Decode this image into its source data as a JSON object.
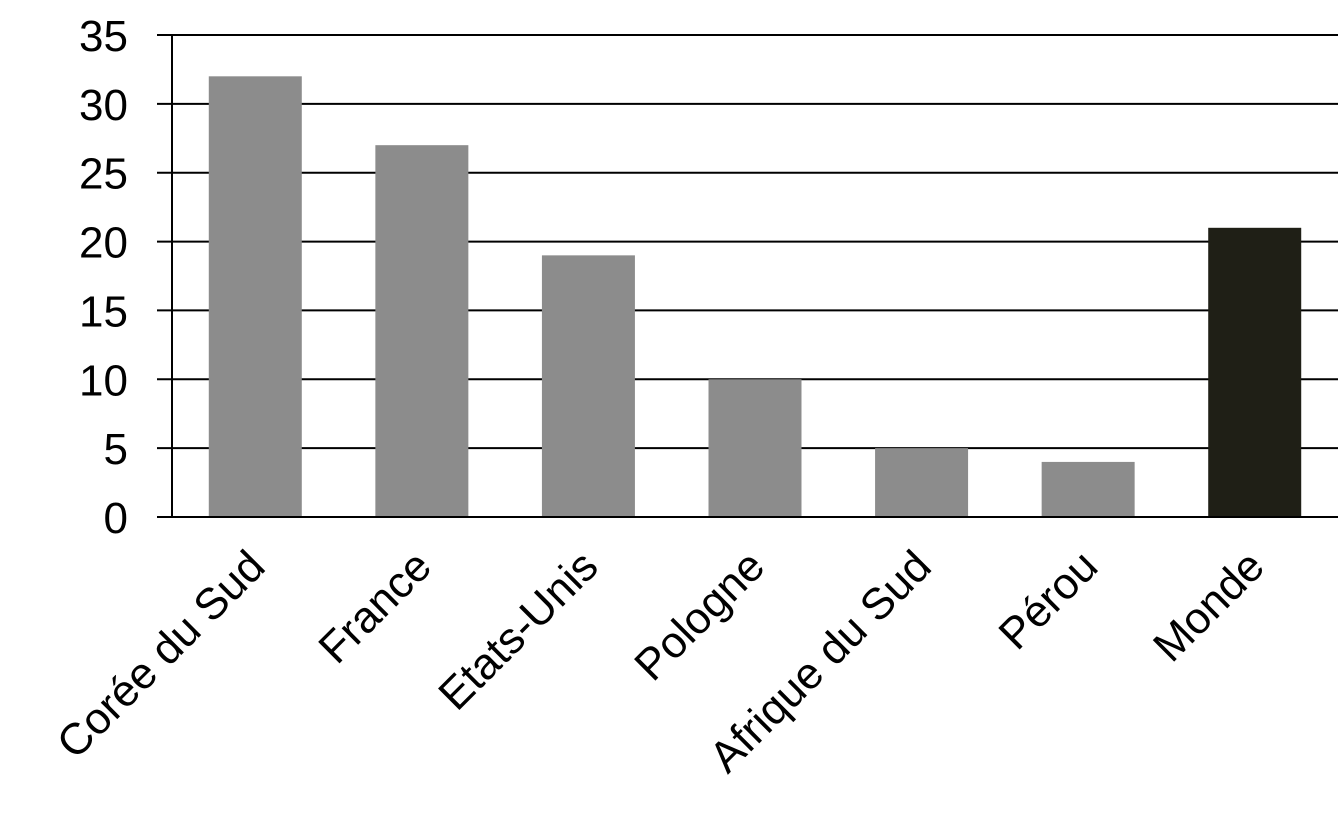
{
  "chart_data": {
    "type": "bar",
    "categories": [
      "Corée du Sud",
      "France",
      "Etats-Unis",
      "Pologne",
      "Afrique du Sud",
      "Pérou",
      "Monde"
    ],
    "values": [
      32,
      27,
      19,
      10,
      5,
      4,
      21
    ],
    "ylim": [
      0,
      35
    ],
    "yticks": [
      "0",
      "5",
      "10",
      "15",
      "20",
      "25",
      "30",
      "35"
    ],
    "grid": true,
    "bar_colors": [
      "#8c8c8c",
      "#8c8c8c",
      "#8c8c8c",
      "#8c8c8c",
      "#8c8c8c",
      "#8c8c8c",
      "#1f1f16"
    ],
    "gridline_color": "#000000"
  }
}
